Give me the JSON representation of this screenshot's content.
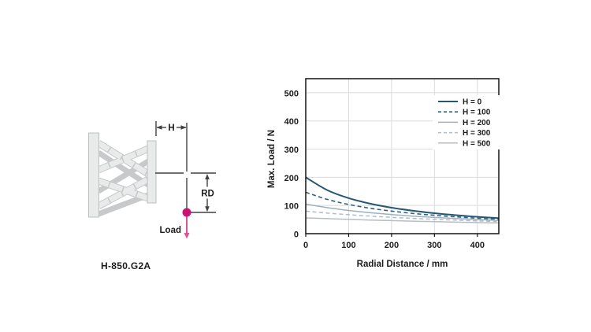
{
  "diagram": {
    "model_label": "H-850.G2A",
    "dim_h_label": "H",
    "dim_rd_label": "RD",
    "load_label": "Load",
    "load_marker_color": "#cc1175",
    "load_arrow_color": "#df519b"
  },
  "chart_data": {
    "type": "line",
    "title": "",
    "xlabel": "Radial Distance / mm",
    "ylabel": "Max. Load / N",
    "xlim": [
      0,
      450
    ],
    "ylim": [
      0,
      550
    ],
    "x_ticks": [
      0,
      100,
      200,
      300,
      400
    ],
    "y_ticks": [
      0,
      100,
      200,
      300,
      400,
      500
    ],
    "grid": true,
    "grid_color": "#d9dbdd",
    "frame_color": "#141414",
    "legend_position": "top-right",
    "x": [
      0,
      50,
      100,
      150,
      200,
      250,
      300,
      350,
      400,
      450
    ],
    "series": [
      {
        "name": "H = 0",
        "color": "#255672",
        "dash": "solid",
        "width": 2,
        "values": [
          200,
          154.7,
          126.1,
          106.5,
          92.1,
          81.2,
          72.5,
          65.6,
          59.8,
          55
        ]
      },
      {
        "name": "H = 100",
        "color": "#306183",
        "dash": "5,3.5",
        "width": 1.6,
        "values": [
          147,
          121.6,
          103.7,
          90.3,
          80,
          71.8,
          65.2,
          59.7,
          55,
          51
        ]
      },
      {
        "name": "H = 200",
        "color": "#9fb1bf",
        "dash": "solid",
        "width": 1.5,
        "values": [
          105,
          92.3,
          82.4,
          74.4,
          67.8,
          62.3,
          57.6,
          53.5,
          50.1,
          47
        ]
      },
      {
        "name": "H = 300",
        "color": "#aebdc8",
        "dash": "5,3.5",
        "width": 1.5,
        "values": [
          80,
          73,
          67.2,
          62.2,
          57.9,
          54.1,
          50.8,
          47.9,
          45.3,
          43
        ]
      },
      {
        "name": "H = 500",
        "color": "#b6bec4",
        "dash": "solid",
        "width": 1.5,
        "values": [
          56,
          53.2,
          50.7,
          48.4,
          46.3,
          44.3,
          42.6,
          40.9,
          39.4,
          38
        ]
      }
    ]
  }
}
